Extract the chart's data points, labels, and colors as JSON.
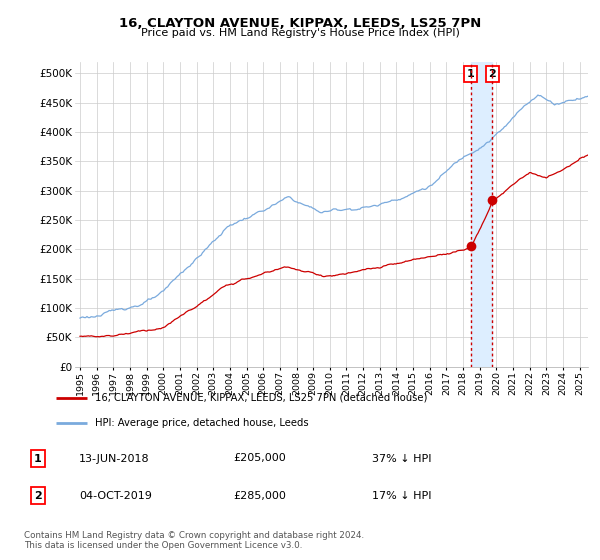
{
  "title": "16, CLAYTON AVENUE, KIPPAX, LEEDS, LS25 7PN",
  "subtitle": "Price paid vs. HM Land Registry's House Price Index (HPI)",
  "legend_line1": "16, CLAYTON AVENUE, KIPPAX, LEEDS, LS25 7PN (detached house)",
  "legend_line2": "HPI: Average price, detached house, Leeds",
  "transaction1_date": "13-JUN-2018",
  "transaction1_price": "£205,000",
  "transaction1_note": "37% ↓ HPI",
  "transaction2_date": "04-OCT-2019",
  "transaction2_price": "£285,000",
  "transaction2_note": "17% ↓ HPI",
  "footnote": "Contains HM Land Registry data © Crown copyright and database right 2024.\nThis data is licensed under the Open Government Licence v3.0.",
  "house_color": "#cc0000",
  "hpi_color": "#7aaadd",
  "shade_color": "#ddeeff",
  "ylim": [
    0,
    520000
  ],
  "yticks": [
    0,
    50000,
    100000,
    150000,
    200000,
    250000,
    300000,
    350000,
    400000,
    450000,
    500000
  ],
  "ytick_labels": [
    "£0",
    "£50K",
    "£100K",
    "£150K",
    "£200K",
    "£250K",
    "£300K",
    "£350K",
    "£400K",
    "£450K",
    "£500K"
  ],
  "transaction1_x": 2018.45,
  "transaction2_x": 2019.75,
  "transaction1_y": 205000,
  "transaction2_y": 285000,
  "xlim_left": 1994.7,
  "xlim_right": 2025.5
}
